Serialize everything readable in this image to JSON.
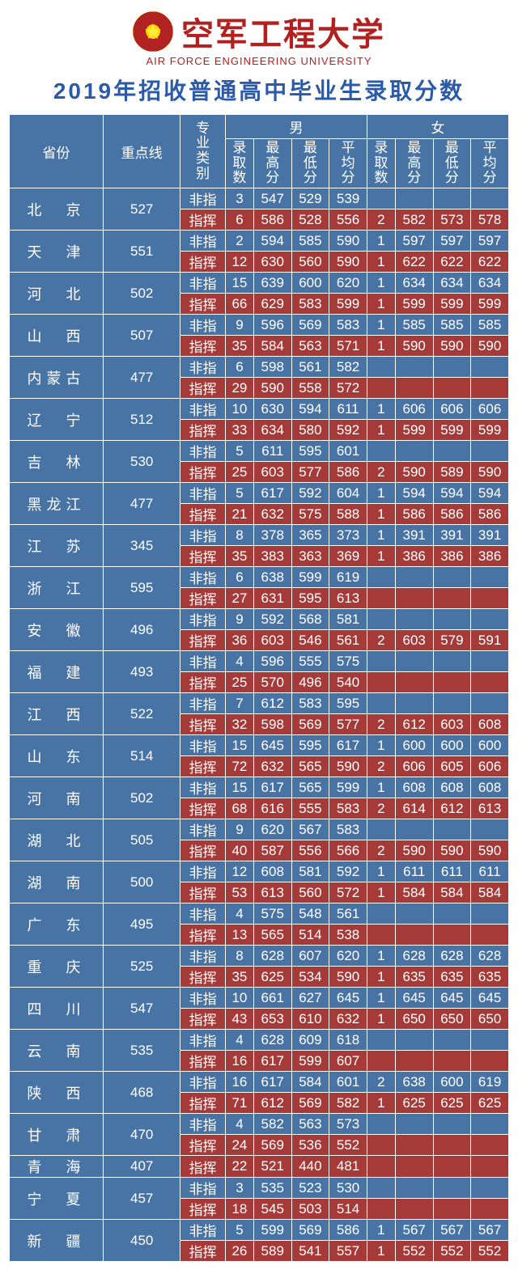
{
  "logo": {
    "cn": "空军工程大学",
    "en": "AIR FORCE ENGINEERING UNIVERSITY",
    "star": "★"
  },
  "title": "2019年招收普通高中毕业生录取分数",
  "columns": {
    "prov": "省份",
    "line": "重点线",
    "major": "专业类别",
    "male": "男",
    "female": "女",
    "count": "录取数",
    "max": "最高分",
    "min": "最低分",
    "avg": "平均分"
  },
  "types": {
    "fz": "非指",
    "zh": "指挥"
  },
  "rows": [
    {
      "prov": "北　京",
      "line": "527",
      "fz": {
        "m": [
          "3",
          "547",
          "529",
          "539"
        ],
        "f": [
          "",
          "",
          "",
          ""
        ]
      },
      "zh": {
        "m": [
          "6",
          "586",
          "528",
          "556"
        ],
        "f": [
          "2",
          "582",
          "573",
          "578"
        ]
      }
    },
    {
      "prov": "天　津",
      "line": "551",
      "fz": {
        "m": [
          "2",
          "594",
          "585",
          "590"
        ],
        "f": [
          "1",
          "597",
          "597",
          "597"
        ]
      },
      "zh": {
        "m": [
          "12",
          "630",
          "560",
          "590"
        ],
        "f": [
          "1",
          "622",
          "622",
          "622"
        ]
      }
    },
    {
      "prov": "河　北",
      "line": "502",
      "fz": {
        "m": [
          "15",
          "639",
          "600",
          "620"
        ],
        "f": [
          "1",
          "634",
          "634",
          "634"
        ]
      },
      "zh": {
        "m": [
          "66",
          "629",
          "583",
          "599"
        ],
        "f": [
          "1",
          "599",
          "599",
          "599"
        ]
      }
    },
    {
      "prov": "山　西",
      "line": "507",
      "fz": {
        "m": [
          "9",
          "596",
          "569",
          "583"
        ],
        "f": [
          "1",
          "585",
          "585",
          "585"
        ]
      },
      "zh": {
        "m": [
          "35",
          "584",
          "563",
          "571"
        ],
        "f": [
          "1",
          "590",
          "590",
          "590"
        ]
      }
    },
    {
      "prov": "内蒙古",
      "line": "477",
      "fz": {
        "m": [
          "6",
          "598",
          "561",
          "582"
        ],
        "f": [
          "",
          "",
          "",
          ""
        ]
      },
      "zh": {
        "m": [
          "29",
          "590",
          "558",
          "572"
        ],
        "f": [
          "",
          "",
          "",
          ""
        ]
      }
    },
    {
      "prov": "辽　宁",
      "line": "512",
      "fz": {
        "m": [
          "10",
          "630",
          "594",
          "611"
        ],
        "f": [
          "1",
          "606",
          "606",
          "606"
        ]
      },
      "zh": {
        "m": [
          "33",
          "634",
          "580",
          "592"
        ],
        "f": [
          "1",
          "599",
          "599",
          "599"
        ]
      }
    },
    {
      "prov": "吉　林",
      "line": "530",
      "fz": {
        "m": [
          "5",
          "611",
          "595",
          "601"
        ],
        "f": [
          "",
          "",
          "",
          ""
        ]
      },
      "zh": {
        "m": [
          "25",
          "603",
          "577",
          "586"
        ],
        "f": [
          "2",
          "590",
          "589",
          "590"
        ]
      }
    },
    {
      "prov": "黑龙江",
      "line": "477",
      "fz": {
        "m": [
          "5",
          "617",
          "592",
          "604"
        ],
        "f": [
          "1",
          "594",
          "594",
          "594"
        ]
      },
      "zh": {
        "m": [
          "21",
          "632",
          "575",
          "588"
        ],
        "f": [
          "1",
          "586",
          "586",
          "586"
        ]
      }
    },
    {
      "prov": "江　苏",
      "line": "345",
      "fz": {
        "m": [
          "8",
          "378",
          "365",
          "373"
        ],
        "f": [
          "1",
          "391",
          "391",
          "391"
        ]
      },
      "zh": {
        "m": [
          "35",
          "383",
          "363",
          "369"
        ],
        "f": [
          "1",
          "386",
          "386",
          "386"
        ]
      }
    },
    {
      "prov": "浙　江",
      "line": "595",
      "fz": {
        "m": [
          "6",
          "638",
          "599",
          "619"
        ],
        "f": [
          "",
          "",
          "",
          ""
        ]
      },
      "zh": {
        "m": [
          "27",
          "631",
          "595",
          "613"
        ],
        "f": [
          "",
          "",
          "",
          ""
        ]
      }
    },
    {
      "prov": "安　徽",
      "line": "496",
      "fz": {
        "m": [
          "9",
          "592",
          "568",
          "581"
        ],
        "f": [
          "",
          "",
          "",
          ""
        ]
      },
      "zh": {
        "m": [
          "36",
          "603",
          "546",
          "561"
        ],
        "f": [
          "2",
          "603",
          "579",
          "591"
        ]
      }
    },
    {
      "prov": "福　建",
      "line": "493",
      "fz": {
        "m": [
          "4",
          "596",
          "555",
          "575"
        ],
        "f": [
          "",
          "",
          "",
          ""
        ]
      },
      "zh": {
        "m": [
          "25",
          "570",
          "496",
          "540"
        ],
        "f": [
          "",
          "",
          "",
          ""
        ]
      }
    },
    {
      "prov": "江　西",
      "line": "522",
      "fz": {
        "m": [
          "7",
          "612",
          "583",
          "595"
        ],
        "f": [
          "",
          "",
          "",
          ""
        ]
      },
      "zh": {
        "m": [
          "32",
          "598",
          "569",
          "577"
        ],
        "f": [
          "2",
          "612",
          "603",
          "608"
        ]
      }
    },
    {
      "prov": "山　东",
      "line": "514",
      "fz": {
        "m": [
          "15",
          "645",
          "595",
          "617"
        ],
        "f": [
          "1",
          "600",
          "600",
          "600"
        ]
      },
      "zh": {
        "m": [
          "72",
          "632",
          "565",
          "590"
        ],
        "f": [
          "2",
          "606",
          "605",
          "606"
        ]
      }
    },
    {
      "prov": "河　南",
      "line": "502",
      "fz": {
        "m": [
          "15",
          "617",
          "565",
          "599"
        ],
        "f": [
          "1",
          "608",
          "608",
          "608"
        ]
      },
      "zh": {
        "m": [
          "68",
          "616",
          "555",
          "583"
        ],
        "f": [
          "2",
          "614",
          "612",
          "613"
        ]
      }
    },
    {
      "prov": "湖　北",
      "line": "505",
      "fz": {
        "m": [
          "9",
          "620",
          "567",
          "583"
        ],
        "f": [
          "",
          "",
          "",
          ""
        ]
      },
      "zh": {
        "m": [
          "40",
          "587",
          "556",
          "566"
        ],
        "f": [
          "2",
          "590",
          "590",
          "590"
        ]
      }
    },
    {
      "prov": "湖　南",
      "line": "500",
      "fz": {
        "m": [
          "12",
          "608",
          "581",
          "592"
        ],
        "f": [
          "1",
          "611",
          "611",
          "611"
        ]
      },
      "zh": {
        "m": [
          "53",
          "613",
          "560",
          "572"
        ],
        "f": [
          "1",
          "584",
          "584",
          "584"
        ]
      }
    },
    {
      "prov": "广　东",
      "line": "495",
      "fz": {
        "m": [
          "4",
          "575",
          "548",
          "561"
        ],
        "f": [
          "",
          "",
          "",
          ""
        ]
      },
      "zh": {
        "m": [
          "13",
          "565",
          "514",
          "538"
        ],
        "f": [
          "",
          "",
          "",
          ""
        ]
      }
    },
    {
      "prov": "重　庆",
      "line": "525",
      "fz": {
        "m": [
          "8",
          "628",
          "607",
          "620"
        ],
        "f": [
          "1",
          "628",
          "628",
          "628"
        ]
      },
      "zh": {
        "m": [
          "35",
          "625",
          "534",
          "590"
        ],
        "f": [
          "1",
          "635",
          "635",
          "635"
        ]
      }
    },
    {
      "prov": "四　川",
      "line": "547",
      "fz": {
        "m": [
          "10",
          "661",
          "627",
          "645"
        ],
        "f": [
          "1",
          "645",
          "645",
          "645"
        ]
      },
      "zh": {
        "m": [
          "43",
          "653",
          "610",
          "632"
        ],
        "f": [
          "1",
          "650",
          "650",
          "650"
        ]
      }
    },
    {
      "prov": "云　南",
      "line": "535",
      "fz": {
        "m": [
          "4",
          "628",
          "609",
          "618"
        ],
        "f": [
          "",
          "",
          "",
          ""
        ]
      },
      "zh": {
        "m": [
          "16",
          "617",
          "599",
          "607"
        ],
        "f": [
          "",
          "",
          "",
          ""
        ]
      }
    },
    {
      "prov": "陕　西",
      "line": "468",
      "fz": {
        "m": [
          "16",
          "617",
          "584",
          "601"
        ],
        "f": [
          "2",
          "638",
          "600",
          "619"
        ]
      },
      "zh": {
        "m": [
          "71",
          "612",
          "569",
          "582"
        ],
        "f": [
          "1",
          "625",
          "625",
          "625"
        ]
      }
    },
    {
      "prov": "甘　肃",
      "line": "470",
      "fz": {
        "m": [
          "4",
          "582",
          "563",
          "573"
        ],
        "f": [
          "",
          "",
          "",
          ""
        ]
      },
      "zh": {
        "m": [
          "24",
          "569",
          "536",
          "552"
        ],
        "f": [
          "",
          "",
          "",
          ""
        ]
      }
    },
    {
      "prov": "青　海",
      "line": "407",
      "zh": {
        "m": [
          "22",
          "521",
          "440",
          "481"
        ],
        "f": [
          "",
          "",
          "",
          ""
        ]
      }
    },
    {
      "prov": "宁　夏",
      "line": "457",
      "fz": {
        "m": [
          "3",
          "535",
          "523",
          "530"
        ],
        "f": [
          "",
          "",
          "",
          ""
        ]
      },
      "zh": {
        "m": [
          "18",
          "545",
          "503",
          "514"
        ],
        "f": [
          "",
          "",
          "",
          ""
        ]
      }
    },
    {
      "prov": "新　疆",
      "line": "450",
      "fz": {
        "m": [
          "5",
          "599",
          "569",
          "586"
        ],
        "f": [
          "1",
          "567",
          "567",
          "567"
        ]
      },
      "zh": {
        "m": [
          "26",
          "589",
          "541",
          "557"
        ],
        "f": [
          "1",
          "552",
          "552",
          "552"
        ]
      }
    }
  ],
  "style": {
    "blue": "#4773a5",
    "red": "#a53a38",
    "title_color": "#2a5aa8",
    "logo_color": "#b32020"
  }
}
